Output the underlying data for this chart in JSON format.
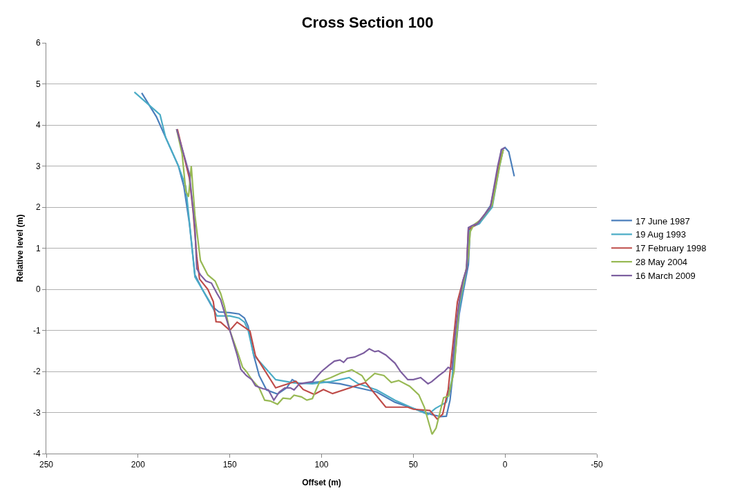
{
  "chart_data": {
    "type": "line",
    "title": "Cross Section 100",
    "xlabel": "Offset (m)",
    "ylabel": "Relative level (m)",
    "xlim": [
      250,
      -50
    ],
    "xticks": [
      250,
      200,
      150,
      100,
      50,
      0,
      -50
    ],
    "ylim": [
      -4,
      6
    ],
    "yticks": [
      -4,
      -3,
      -2,
      -1,
      0,
      1,
      2,
      3,
      4,
      5,
      6
    ],
    "grid": "y",
    "legend": "right",
    "marker": "none",
    "line_style": "solid",
    "series": [
      {
        "name": "17 June 1987",
        "color": "#4a7ebb",
        "x": [
          198,
          190,
          185,
          178,
          175,
          172,
          169,
          165,
          160,
          156,
          150,
          145,
          142,
          140,
          137,
          134,
          130,
          124,
          119,
          116,
          112,
          100,
          90,
          80,
          70,
          60,
          50,
          40,
          35,
          32,
          30,
          27,
          25,
          23,
          20,
          19,
          14,
          10,
          7,
          5,
          2,
          0,
          -2,
          -5
        ],
        "values": [
          4.78,
          4.2,
          3.7,
          3.0,
          2.5,
          1.6,
          0.35,
          0.0,
          -0.4,
          -0.55,
          -0.57,
          -0.6,
          -0.7,
          -0.9,
          -1.6,
          -2.1,
          -2.45,
          -2.55,
          -2.4,
          -2.2,
          -2.3,
          -2.25,
          -2.3,
          -2.4,
          -2.5,
          -2.75,
          -2.9,
          -3.05,
          -3.1,
          -3.09,
          -2.7,
          -1.5,
          -0.6,
          -0.1,
          0.6,
          1.5,
          1.6,
          1.9,
          2.1,
          2.6,
          3.4,
          3.45,
          3.35,
          2.75
        ]
      },
      {
        "name": "19 Aug 1993",
        "color": "#4bacc6",
        "x": [
          202,
          188,
          185,
          178,
          174,
          171,
          169,
          165,
          161,
          157,
          150,
          145,
          142,
          140,
          137,
          130,
          125,
          115,
          105,
          95,
          85,
          80,
          70,
          60,
          50,
          42,
          38,
          32,
          29,
          27,
          25,
          21,
          19,
          14,
          7,
          3,
          1
        ],
        "values": [
          4.8,
          4.25,
          3.7,
          3.0,
          2.5,
          1.2,
          0.3,
          0.0,
          -0.3,
          -0.65,
          -0.65,
          -0.7,
          -0.8,
          -1.0,
          -1.6,
          -1.95,
          -2.2,
          -2.28,
          -2.3,
          -2.25,
          -2.15,
          -2.3,
          -2.45,
          -2.7,
          -2.9,
          -3.05,
          -2.9,
          -2.75,
          -2.2,
          -1.3,
          -0.5,
          0.5,
          1.5,
          1.6,
          2.0,
          3.0,
          3.4
        ]
      },
      {
        "name": "17 February 1998",
        "color": "#be4b48",
        "x": [
          178.6,
          172,
          170,
          168,
          166.5,
          162,
          159,
          157.5,
          155,
          150,
          146,
          139,
          136,
          125,
          114,
          110,
          104,
          99,
          94,
          76,
          65,
          53,
          50,
          41,
          37,
          34,
          31,
          26,
          23,
          21,
          20,
          15,
          8,
          4,
          1
        ],
        "values": [
          3.9,
          2.7,
          1.9,
          0.8,
          0.25,
          0.0,
          -0.3,
          -0.79,
          -0.8,
          -1.0,
          -0.8,
          -1.02,
          -1.62,
          -2.4,
          -2.24,
          -2.44,
          -2.56,
          -2.44,
          -2.54,
          -2.27,
          -2.87,
          -2.87,
          -2.92,
          -2.95,
          -3.16,
          -3.04,
          -2.44,
          -0.31,
          0.2,
          0.5,
          1.45,
          1.6,
          2.0,
          2.9,
          3.4
        ]
      },
      {
        "name": "28 May 2004",
        "color": "#98b954",
        "x": [
          179,
          176,
          174,
          172.5,
          171,
          169,
          166,
          162,
          158,
          155,
          153,
          150,
          146,
          143,
          141,
          138,
          134,
          131,
          128,
          124,
          121,
          117,
          115,
          111,
          108,
          105,
          103,
          101,
          95,
          90,
          83.5,
          78,
          76,
          71,
          66,
          62,
          58,
          52,
          47,
          44,
          39.8,
          37.6,
          33.5,
          30.8,
          27.8,
          25,
          22,
          20,
          19,
          17,
          13,
          7,
          3,
          1
        ],
        "values": [
          3.9,
          3.3,
          2.4,
          2.25,
          3.0,
          1.8,
          0.7,
          0.35,
          0.2,
          -0.1,
          -0.4,
          -1.0,
          -1.5,
          -1.9,
          -2.0,
          -2.2,
          -2.4,
          -2.7,
          -2.72,
          -2.8,
          -2.65,
          -2.67,
          -2.58,
          -2.62,
          -2.7,
          -2.66,
          -2.45,
          -2.25,
          -2.15,
          -2.05,
          -1.96,
          -2.1,
          -2.24,
          -2.05,
          -2.1,
          -2.27,
          -2.22,
          -2.36,
          -2.57,
          -2.87,
          -3.53,
          -3.38,
          -2.64,
          -2.6,
          -2.0,
          -0.35,
          0.3,
          0.8,
          1.4,
          1.57,
          1.7,
          2.05,
          3.0,
          3.4
        ]
      },
      {
        "name": "16 March 2009",
        "color": "#7d5fa0",
        "x": [
          179,
          172,
          169,
          168,
          166,
          163,
          160,
          157,
          155,
          150,
          146,
          144,
          141,
          138,
          136,
          132,
          129,
          126,
          123,
          120,
          117,
          115,
          112,
          105,
          100,
          96,
          93,
          90,
          88,
          86,
          82,
          77,
          74,
          71,
          69,
          65,
          60,
          57,
          55,
          53,
          50,
          46,
          42,
          40,
          36,
          33,
          31,
          29,
          27,
          25,
          23,
          21,
          20,
          18,
          15,
          8,
          4,
          2,
          0
        ],
        "values": [
          3.9,
          2.8,
          1.5,
          0.5,
          0.35,
          0.2,
          0.15,
          -0.1,
          -0.25,
          -1.0,
          -1.6,
          -1.95,
          -2.1,
          -2.2,
          -2.35,
          -2.42,
          -2.45,
          -2.7,
          -2.5,
          -2.4,
          -2.4,
          -2.45,
          -2.3,
          -2.25,
          -2.0,
          -1.85,
          -1.75,
          -1.72,
          -1.78,
          -1.68,
          -1.65,
          -1.55,
          -1.45,
          -1.52,
          -1.5,
          -1.6,
          -1.8,
          -2.0,
          -2.1,
          -2.2,
          -2.2,
          -2.15,
          -2.3,
          -2.25,
          -2.1,
          -2.0,
          -1.9,
          -1.95,
          -1.0,
          -0.3,
          0.2,
          0.5,
          1.5,
          1.55,
          1.6,
          2.0,
          3.0,
          3.4,
          3.45
        ]
      }
    ]
  }
}
